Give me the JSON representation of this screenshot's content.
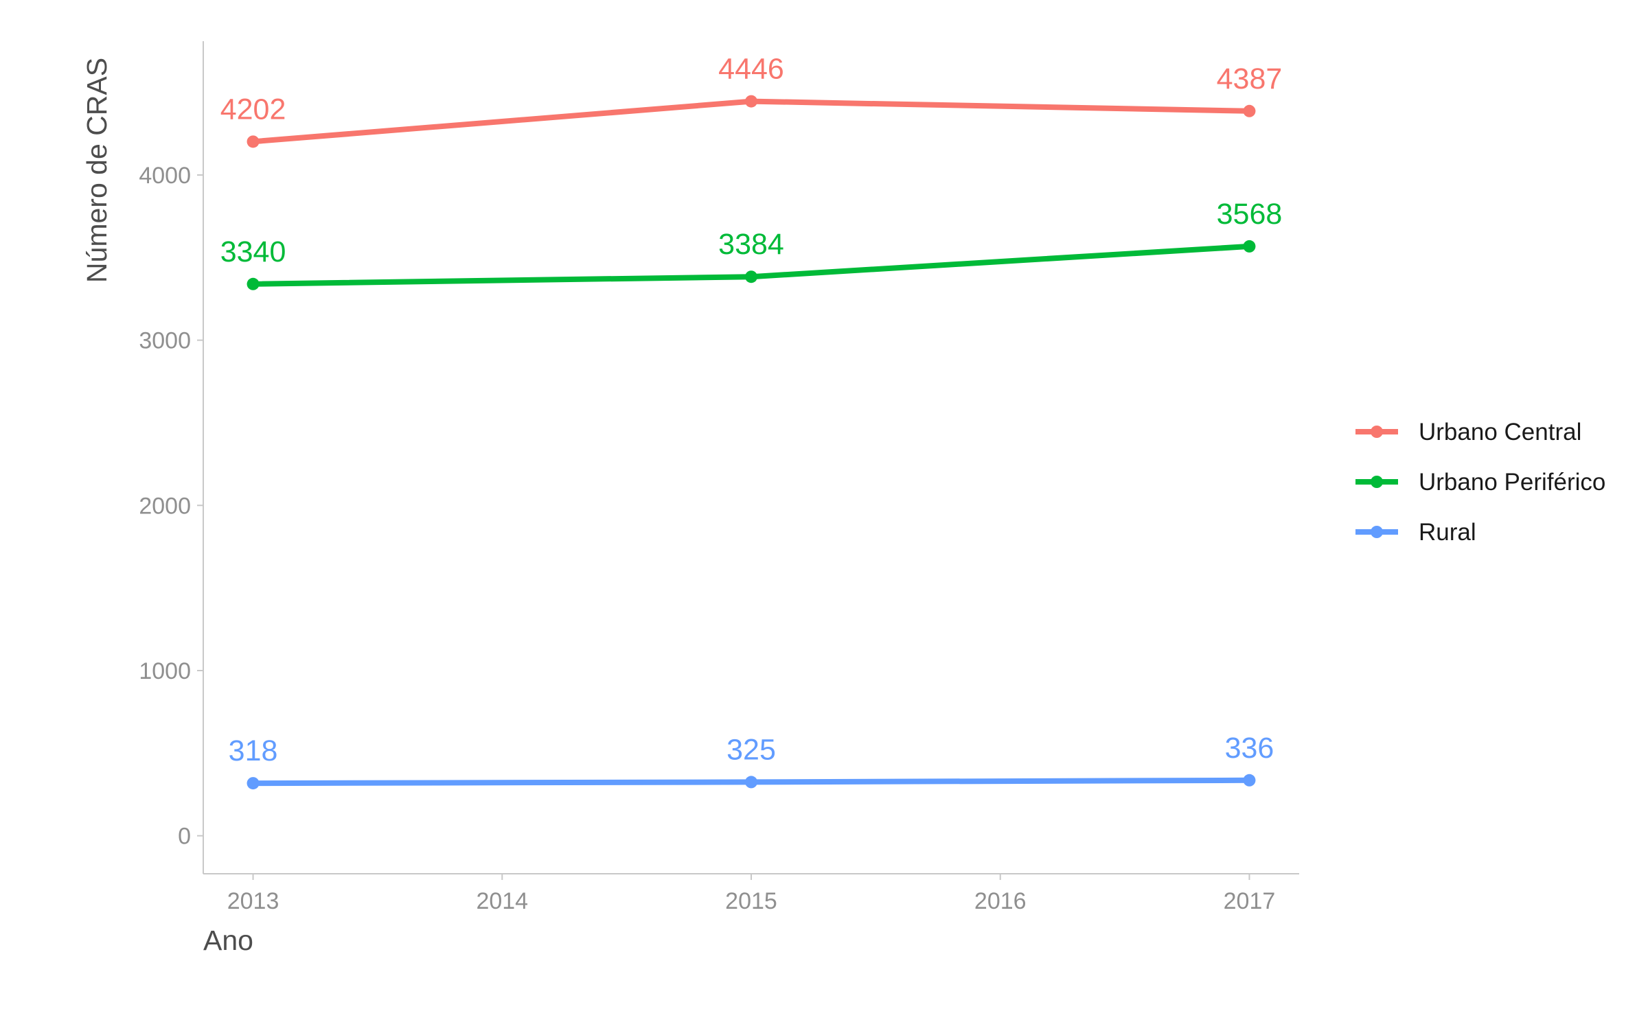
{
  "chart_data": {
    "type": "line",
    "xlabel": "Ano",
    "ylabel": "Número de CRAS",
    "x": [
      2013,
      2015,
      2017
    ],
    "xticks": [
      "2013",
      "2014",
      "2015",
      "2016",
      "2017"
    ],
    "xlim": [
      2012.8,
      2017.2
    ],
    "yticks": [
      "0",
      "1000",
      "2000",
      "3000",
      "4000"
    ],
    "ylim": [
      -230,
      4810
    ],
    "grid": false,
    "legend_position": "right",
    "series": [
      {
        "name": "Urbano Central",
        "values": [
          4202,
          4446,
          4387
        ],
        "labels": [
          "4202",
          "4446",
          "4387"
        ],
        "color": "#F8766D"
      },
      {
        "name": "Urbano Periférico",
        "values": [
          3340,
          3384,
          3568
        ],
        "labels": [
          "3340",
          "3384",
          "3568"
        ],
        "color": "#00BA38"
      },
      {
        "name": "Rural",
        "values": [
          318,
          325,
          336
        ],
        "labels": [
          "318",
          "325",
          "336"
        ],
        "color": "#619CFF"
      }
    ]
  }
}
